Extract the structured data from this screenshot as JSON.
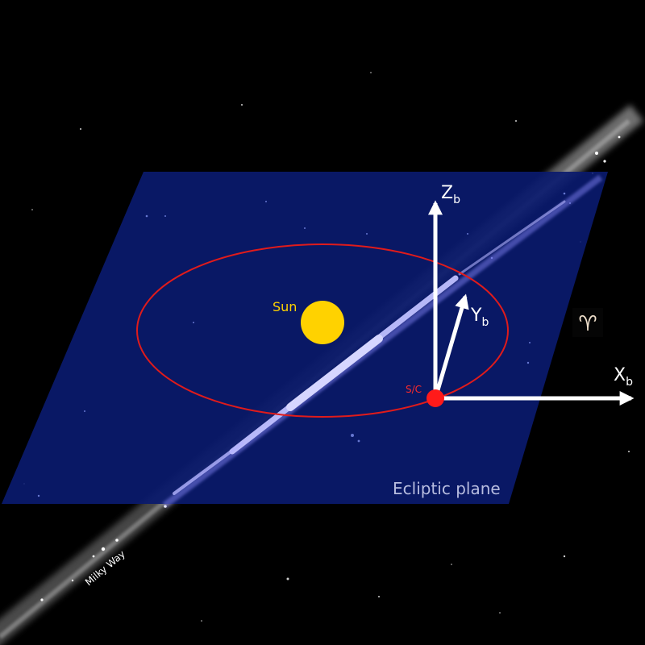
{
  "labels": {
    "sun": "Sun",
    "spacecraft": "S/C",
    "ecliptic_plane": "Ecliptic plane",
    "milky_way": "Milky Way",
    "aries_symbol": "♈"
  },
  "axes": {
    "z": {
      "letter": "Z",
      "subscript": "b"
    },
    "y": {
      "letter": "Y",
      "subscript": "b"
    },
    "x": {
      "letter": "X",
      "subscript": "b"
    }
  },
  "colors": {
    "background": "#000000",
    "plane": "#0a1a6e",
    "orbit": "#e01b1b",
    "sun": "#ffd200",
    "spacecraft": "#ff1a1a",
    "axis": "#ffffff",
    "milky_way": "#c8c8ff",
    "sun_label": "#ffd200",
    "spacecraft_label": "#ff2a2a",
    "plane_label": "#b8bde0"
  }
}
